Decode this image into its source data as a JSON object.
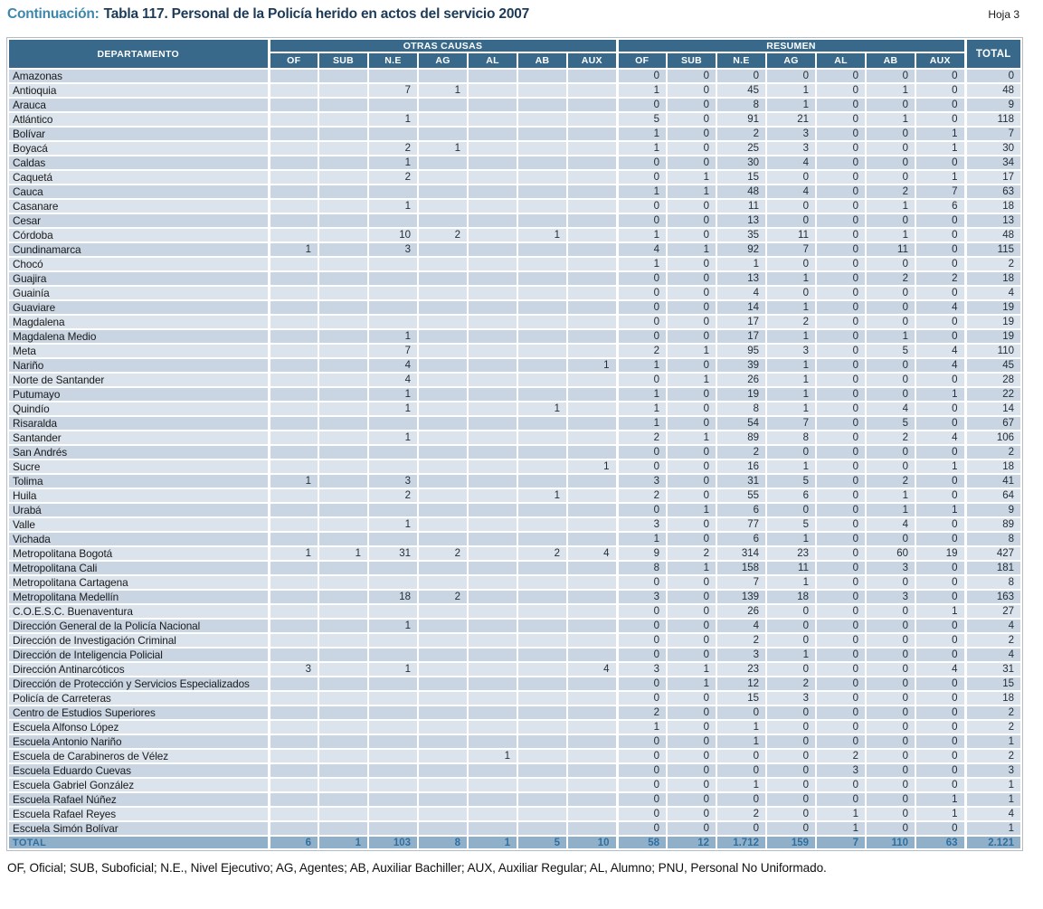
{
  "page": {
    "continuation_label": "Continuación:",
    "title": "Tabla 117.  Personal de la Policía herido en actos del servicio 2007",
    "sheet_label": "Hoja 3",
    "footnote": "OF, Oficial; SUB, Suboficial; N.E., Nivel Ejecutivo; AG, Agentes; AB, Auxiliar Bachiller; AUX, Auxiliar Regular; AL, Alumno; PNU, Personal No Uniformado."
  },
  "colors": {
    "header_bg": "#38698a",
    "row_odd": "#c9d5e2",
    "row_even": "#dbe3ec",
    "total_row_bg": "#90b0ca",
    "total_row_text": "#2f6fa0",
    "title_accent": "#3d87ad",
    "title_text": "#1d3b58"
  },
  "table": {
    "department_header": "DEPARTAMENTO",
    "group_headers": [
      "OTRAS CAUSAS",
      "RESUMEN"
    ],
    "sub_headers": [
      "OF",
      "SUB",
      "N.E",
      "AG",
      "AL",
      "AB",
      "AUX"
    ],
    "total_header": "TOTAL",
    "total_label": "TOTAL",
    "rows": [
      {
        "departamento": "Amazonas",
        "otras_causas": [
          "",
          "",
          "",
          "",
          "",
          "",
          ""
        ],
        "resumen": [
          "0",
          "0",
          "0",
          "0",
          "0",
          "0",
          "0"
        ],
        "total": "0"
      },
      {
        "departamento": "Antioquia",
        "otras_causas": [
          "",
          "",
          "7",
          "1",
          "",
          "",
          ""
        ],
        "resumen": [
          "1",
          "0",
          "45",
          "1",
          "0",
          "1",
          "0"
        ],
        "total": "48"
      },
      {
        "departamento": "Arauca",
        "otras_causas": [
          "",
          "",
          "",
          "",
          "",
          "",
          ""
        ],
        "resumen": [
          "0",
          "0",
          "8",
          "1",
          "0",
          "0",
          "0"
        ],
        "total": "9"
      },
      {
        "departamento": "Atlántico",
        "otras_causas": [
          "",
          "",
          "1",
          "",
          "",
          "",
          ""
        ],
        "resumen": [
          "5",
          "0",
          "91",
          "21",
          "0",
          "1",
          "0"
        ],
        "total": "118"
      },
      {
        "departamento": "Bolívar",
        "otras_causas": [
          "",
          "",
          "",
          "",
          "",
          "",
          ""
        ],
        "resumen": [
          "1",
          "0",
          "2",
          "3",
          "0",
          "0",
          "1"
        ],
        "total": "7"
      },
      {
        "departamento": "Boyacá",
        "otras_causas": [
          "",
          "",
          "2",
          "1",
          "",
          "",
          ""
        ],
        "resumen": [
          "1",
          "0",
          "25",
          "3",
          "0",
          "0",
          "1"
        ],
        "total": "30"
      },
      {
        "departamento": "Caldas",
        "otras_causas": [
          "",
          "",
          "1",
          "",
          "",
          "",
          ""
        ],
        "resumen": [
          "0",
          "0",
          "30",
          "4",
          "0",
          "0",
          "0"
        ],
        "total": "34"
      },
      {
        "departamento": "Caquetá",
        "otras_causas": [
          "",
          "",
          "2",
          "",
          "",
          "",
          ""
        ],
        "resumen": [
          "0",
          "1",
          "15",
          "0",
          "0",
          "0",
          "1"
        ],
        "total": "17"
      },
      {
        "departamento": "Cauca",
        "otras_causas": [
          "",
          "",
          "",
          "",
          "",
          "",
          ""
        ],
        "resumen": [
          "1",
          "1",
          "48",
          "4",
          "0",
          "2",
          "7"
        ],
        "total": "63"
      },
      {
        "departamento": "Casanare",
        "otras_causas": [
          "",
          "",
          "1",
          "",
          "",
          "",
          ""
        ],
        "resumen": [
          "0",
          "0",
          "11",
          "0",
          "0",
          "1",
          "6"
        ],
        "total": "18"
      },
      {
        "departamento": "Cesar",
        "otras_causas": [
          "",
          "",
          "",
          "",
          "",
          "",
          ""
        ],
        "resumen": [
          "0",
          "0",
          "13",
          "0",
          "0",
          "0",
          "0"
        ],
        "total": "13"
      },
      {
        "departamento": "Córdoba",
        "otras_causas": [
          "",
          "",
          "10",
          "2",
          "",
          "1",
          ""
        ],
        "resumen": [
          "1",
          "0",
          "35",
          "11",
          "0",
          "1",
          "0"
        ],
        "total": "48"
      },
      {
        "departamento": "Cundinamarca",
        "otras_causas": [
          "1",
          "",
          "3",
          "",
          "",
          "",
          ""
        ],
        "resumen": [
          "4",
          "1",
          "92",
          "7",
          "0",
          "11",
          "0"
        ],
        "total": "115"
      },
      {
        "departamento": "Chocó",
        "otras_causas": [
          "",
          "",
          "",
          "",
          "",
          "",
          ""
        ],
        "resumen": [
          "1",
          "0",
          "1",
          "0",
          "0",
          "0",
          "0"
        ],
        "total": "2"
      },
      {
        "departamento": "Guajira",
        "otras_causas": [
          "",
          "",
          "",
          "",
          "",
          "",
          ""
        ],
        "resumen": [
          "0",
          "0",
          "13",
          "1",
          "0",
          "2",
          "2"
        ],
        "total": "18"
      },
      {
        "departamento": "Guainía",
        "otras_causas": [
          "",
          "",
          "",
          "",
          "",
          "",
          ""
        ],
        "resumen": [
          "0",
          "0",
          "4",
          "0",
          "0",
          "0",
          "0"
        ],
        "total": "4"
      },
      {
        "departamento": "Guaviare",
        "otras_causas": [
          "",
          "",
          "",
          "",
          "",
          "",
          ""
        ],
        "resumen": [
          "0",
          "0",
          "14",
          "1",
          "0",
          "0",
          "4"
        ],
        "total": "19"
      },
      {
        "departamento": "Magdalena",
        "otras_causas": [
          "",
          "",
          "",
          "",
          "",
          "",
          ""
        ],
        "resumen": [
          "0",
          "0",
          "17",
          "2",
          "0",
          "0",
          "0"
        ],
        "total": "19"
      },
      {
        "departamento": "Magdalena Medio",
        "otras_causas": [
          "",
          "",
          "1",
          "",
          "",
          "",
          ""
        ],
        "resumen": [
          "0",
          "0",
          "17",
          "1",
          "0",
          "1",
          "0"
        ],
        "total": "19"
      },
      {
        "departamento": "Meta",
        "otras_causas": [
          "",
          "",
          "7",
          "",
          "",
          "",
          ""
        ],
        "resumen": [
          "2",
          "1",
          "95",
          "3",
          "0",
          "5",
          "4"
        ],
        "total": "110"
      },
      {
        "departamento": "Nariño",
        "otras_causas": [
          "",
          "",
          "4",
          "",
          "",
          "",
          "1"
        ],
        "resumen": [
          "1",
          "0",
          "39",
          "1",
          "0",
          "0",
          "4"
        ],
        "total": "45"
      },
      {
        "departamento": "Norte de Santander",
        "otras_causas": [
          "",
          "",
          "4",
          "",
          "",
          "",
          ""
        ],
        "resumen": [
          "0",
          "1",
          "26",
          "1",
          "0",
          "0",
          "0"
        ],
        "total": "28"
      },
      {
        "departamento": "Putumayo",
        "otras_causas": [
          "",
          "",
          "1",
          "",
          "",
          "",
          ""
        ],
        "resumen": [
          "1",
          "0",
          "19",
          "1",
          "0",
          "0",
          "1"
        ],
        "total": "22"
      },
      {
        "departamento": "Quindío",
        "otras_causas": [
          "",
          "",
          "1",
          "",
          "",
          "1",
          ""
        ],
        "resumen": [
          "1",
          "0",
          "8",
          "1",
          "0",
          "4",
          "0"
        ],
        "total": "14"
      },
      {
        "departamento": "Risaralda",
        "otras_causas": [
          "",
          "",
          "",
          "",
          "",
          "",
          ""
        ],
        "resumen": [
          "1",
          "0",
          "54",
          "7",
          "0",
          "5",
          "0"
        ],
        "total": "67"
      },
      {
        "departamento": "Santander",
        "otras_causas": [
          "",
          "",
          "1",
          "",
          "",
          "",
          ""
        ],
        "resumen": [
          "2",
          "1",
          "89",
          "8",
          "0",
          "2",
          "4"
        ],
        "total": "106"
      },
      {
        "departamento": "San Andrés",
        "otras_causas": [
          "",
          "",
          "",
          "",
          "",
          "",
          ""
        ],
        "resumen": [
          "0",
          "0",
          "2",
          "0",
          "0",
          "0",
          "0"
        ],
        "total": "2"
      },
      {
        "departamento": "Sucre",
        "otras_causas": [
          "",
          "",
          "",
          "",
          "",
          "",
          "1"
        ],
        "resumen": [
          "0",
          "0",
          "16",
          "1",
          "0",
          "0",
          "1"
        ],
        "total": "18"
      },
      {
        "departamento": "Tolima",
        "otras_causas": [
          "1",
          "",
          "3",
          "",
          "",
          "",
          ""
        ],
        "resumen": [
          "3",
          "0",
          "31",
          "5",
          "0",
          "2",
          "0"
        ],
        "total": "41"
      },
      {
        "departamento": "Huila",
        "otras_causas": [
          "",
          "",
          "2",
          "",
          "",
          "1",
          ""
        ],
        "resumen": [
          "2",
          "0",
          "55",
          "6",
          "0",
          "1",
          "0"
        ],
        "total": "64"
      },
      {
        "departamento": "Urabá",
        "otras_causas": [
          "",
          "",
          "",
          "",
          "",
          "",
          ""
        ],
        "resumen": [
          "0",
          "1",
          "6",
          "0",
          "0",
          "1",
          "1"
        ],
        "total": "9"
      },
      {
        "departamento": "Valle",
        "otras_causas": [
          "",
          "",
          "1",
          "",
          "",
          "",
          ""
        ],
        "resumen": [
          "3",
          "0",
          "77",
          "5",
          "0",
          "4",
          "0"
        ],
        "total": "89"
      },
      {
        "departamento": "Vichada",
        "otras_causas": [
          "",
          "",
          "",
          "",
          "",
          "",
          ""
        ],
        "resumen": [
          "1",
          "0",
          "6",
          "1",
          "0",
          "0",
          "0"
        ],
        "total": "8"
      },
      {
        "departamento": "Metropolitana Bogotá",
        "otras_causas": [
          "1",
          "1",
          "31",
          "2",
          "",
          "2",
          "4"
        ],
        "resumen": [
          "9",
          "2",
          "314",
          "23",
          "0",
          "60",
          "19"
        ],
        "total": "427"
      },
      {
        "departamento": "Metropolitana Cali",
        "otras_causas": [
          "",
          "",
          "",
          "",
          "",
          "",
          ""
        ],
        "resumen": [
          "8",
          "1",
          "158",
          "11",
          "0",
          "3",
          "0"
        ],
        "total": "181"
      },
      {
        "departamento": "Metropolitana Cartagena",
        "otras_causas": [
          "",
          "",
          "",
          "",
          "",
          "",
          ""
        ],
        "resumen": [
          "0",
          "0",
          "7",
          "1",
          "0",
          "0",
          "0"
        ],
        "total": "8"
      },
      {
        "departamento": "Metropolitana Medellín",
        "otras_causas": [
          "",
          "",
          "18",
          "2",
          "",
          "",
          ""
        ],
        "resumen": [
          "3",
          "0",
          "139",
          "18",
          "0",
          "3",
          "0"
        ],
        "total": "163"
      },
      {
        "departamento": "C.O.E.S.C. Buenaventura",
        "otras_causas": [
          "",
          "",
          "",
          "",
          "",
          "",
          ""
        ],
        "resumen": [
          "0",
          "0",
          "26",
          "0",
          "0",
          "0",
          "1"
        ],
        "total": "27"
      },
      {
        "departamento": "Dirección General de la Policía Nacional",
        "otras_causas": [
          "",
          "",
          "1",
          "",
          "",
          "",
          ""
        ],
        "resumen": [
          "0",
          "0",
          "4",
          "0",
          "0",
          "0",
          "0"
        ],
        "total": "4"
      },
      {
        "departamento": "Dirección de Investigación Criminal",
        "otras_causas": [
          "",
          "",
          "",
          "",
          "",
          "",
          ""
        ],
        "resumen": [
          "0",
          "0",
          "2",
          "0",
          "0",
          "0",
          "0"
        ],
        "total": "2"
      },
      {
        "departamento": "Dirección de Inteligencia Policial",
        "otras_causas": [
          "",
          "",
          "",
          "",
          "",
          "",
          ""
        ],
        "resumen": [
          "0",
          "0",
          "3",
          "1",
          "0",
          "0",
          "0"
        ],
        "total": "4"
      },
      {
        "departamento": "Dirección Antinarcóticos",
        "otras_causas": [
          "3",
          "",
          "1",
          "",
          "",
          "",
          "4"
        ],
        "resumen": [
          "3",
          "1",
          "23",
          "0",
          "0",
          "0",
          "4"
        ],
        "total": "31"
      },
      {
        "departamento": "Dirección de Protección y Servicios Especializados",
        "otras_causas": [
          "",
          "",
          "",
          "",
          "",
          "",
          ""
        ],
        "resumen": [
          "0",
          "1",
          "12",
          "2",
          "0",
          "0",
          "0"
        ],
        "total": "15"
      },
      {
        "departamento": "Policía de Carreteras",
        "otras_causas": [
          "",
          "",
          "",
          "",
          "",
          "",
          ""
        ],
        "resumen": [
          "0",
          "0",
          "15",
          "3",
          "0",
          "0",
          "0"
        ],
        "total": "18"
      },
      {
        "departamento": "Centro de Estudios Superiores",
        "otras_causas": [
          "",
          "",
          "",
          "",
          "",
          "",
          ""
        ],
        "resumen": [
          "2",
          "0",
          "0",
          "0",
          "0",
          "0",
          "0"
        ],
        "total": "2"
      },
      {
        "departamento": "Escuela Alfonso López",
        "otras_causas": [
          "",
          "",
          "",
          "",
          "",
          "",
          ""
        ],
        "resumen": [
          "1",
          "0",
          "1",
          "0",
          "0",
          "0",
          "0"
        ],
        "total": "2"
      },
      {
        "departamento": "Escuela Antonio Nariño",
        "otras_causas": [
          "",
          "",
          "",
          "",
          "",
          "",
          ""
        ],
        "resumen": [
          "0",
          "0",
          "1",
          "0",
          "0",
          "0",
          "0"
        ],
        "total": "1"
      },
      {
        "departamento": "Escuela de Carabineros de Vélez",
        "otras_causas": [
          "",
          "",
          "",
          "",
          "1",
          "",
          ""
        ],
        "resumen": [
          "0",
          "0",
          "0",
          "0",
          "2",
          "0",
          "0"
        ],
        "total": "2"
      },
      {
        "departamento": "Escuela Eduardo Cuevas",
        "otras_causas": [
          "",
          "",
          "",
          "",
          "",
          "",
          ""
        ],
        "resumen": [
          "0",
          "0",
          "0",
          "0",
          "3",
          "0",
          "0"
        ],
        "total": "3"
      },
      {
        "departamento": "Escuela Gabriel González",
        "otras_causas": [
          "",
          "",
          "",
          "",
          "",
          "",
          ""
        ],
        "resumen": [
          "0",
          "0",
          "1",
          "0",
          "0",
          "0",
          "0"
        ],
        "total": "1"
      },
      {
        "departamento": "Escuela Rafael Núñez",
        "otras_causas": [
          "",
          "",
          "",
          "",
          "",
          "",
          ""
        ],
        "resumen": [
          "0",
          "0",
          "0",
          "0",
          "0",
          "0",
          "1"
        ],
        "total": "1"
      },
      {
        "departamento": "Escuela Rafael Reyes",
        "otras_causas": [
          "",
          "",
          "",
          "",
          "",
          "",
          ""
        ],
        "resumen": [
          "0",
          "0",
          "2",
          "0",
          "1",
          "0",
          "1"
        ],
        "total": "4"
      },
      {
        "departamento": "Escuela Simón Bolívar",
        "otras_causas": [
          "",
          "",
          "",
          "",
          "",
          "",
          ""
        ],
        "resumen": [
          "0",
          "0",
          "0",
          "0",
          "1",
          "0",
          "0"
        ],
        "total": "1"
      }
    ],
    "totals": {
      "otras_causas": [
        "6",
        "1",
        "103",
        "8",
        "1",
        "5",
        "10"
      ],
      "resumen": [
        "58",
        "12",
        "1.712",
        "159",
        "7",
        "110",
        "63"
      ],
      "total": "2.121"
    }
  }
}
